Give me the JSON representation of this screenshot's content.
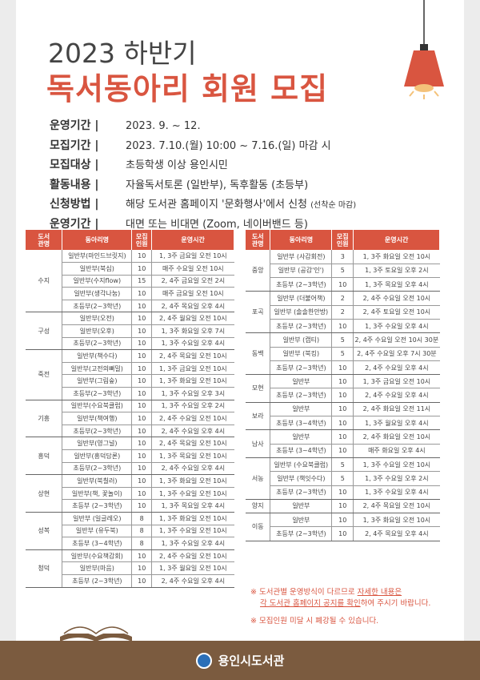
{
  "title": {
    "line1": "2023 하반기",
    "line2": "독서동아리 회원 모집"
  },
  "info": [
    {
      "k": "운영기간 |",
      "v": "2023. 9. ~ 12.",
      "s": ""
    },
    {
      "k": "모집기간 |",
      "v": "2023. 7.10.(월) 10:00 ~ 7.16.(일) 마감 시",
      "s": ""
    },
    {
      "k": "모집대상 |",
      "v": "초등학생 이상 용인시민",
      "s": ""
    },
    {
      "k": "활동내용 |",
      "v": "자율독서토론 (일반부), 독후활동 (초등부)",
      "s": ""
    },
    {
      "k": "신청방법 |",
      "v": "해당 도서관 홈페이지 '문화행사'에서 신청 ",
      "s": "(선착순 마감)"
    },
    {
      "k": "운영기간 |",
      "v": "대면 또는 비대면 (Zoom, 네이버밴드 등)",
      "s": ""
    }
  ],
  "headers": [
    "도서\n관명",
    "동아리명",
    "모집\n인원",
    "운영시간"
  ],
  "left": [
    {
      "lib": "수지",
      "rows": [
        [
          "일반부(마인드브릿지)",
          "10",
          "1, 3주 금요일 오전 10시"
        ],
        [
          "일반부(북심)",
          "10",
          "매주 수요일 오전 10시"
        ],
        [
          "일반부(수지flow)",
          "15",
          "2, 4주 금요일 오전 2시"
        ],
        [
          "일반부(생각나눔)",
          "10",
          "매주 금요일 오전 10시"
        ],
        [
          "초등부(2~3학년)",
          "10",
          "2, 4주 목요일 오후 4시"
        ]
      ]
    },
    {
      "lib": "구성",
      "rows": [
        [
          "일반부(오전)",
          "10",
          "2, 4주 월요일 오전 10시"
        ],
        [
          "일반부(오후)",
          "10",
          "1, 3주 화요일 오후 7시"
        ],
        [
          "초등부(2~3학년)",
          "10",
          "1, 3주 수요일 오후 4시"
        ]
      ]
    },
    {
      "lib": "죽전",
      "rows": [
        [
          "일반부(책수다)",
          "10",
          "2, 4주 목요일 오전 10시"
        ],
        [
          "일반부(고전의뼈밀)",
          "10",
          "1, 3주 금요일 오전 10시"
        ],
        [
          "일반부(그림숲)",
          "10",
          "1, 3주 화요일 오전 10시"
        ],
        [
          "초등부(2~3학년)",
          "10",
          "1, 3주 수요일 오후 3시"
        ]
      ]
    },
    {
      "lib": "기흥",
      "rows": [
        [
          "일반부(수요북클럽)",
          "10",
          "1, 3주 수요일 오후 2시"
        ],
        [
          "일반부(책여행)",
          "10",
          "2, 4주 수요일 오전 10시"
        ],
        [
          "초등부(2~3학년)",
          "10",
          "2, 4주 수요일 오후 4시"
        ]
      ]
    },
    {
      "lib": "흥덕",
      "rows": [
        [
          "일반부(영그널)",
          "10",
          "2, 4주 목요일 오전 10시"
        ],
        [
          "일반부(흥덕담론)",
          "10",
          "1, 3주 목요일 오전 10시"
        ],
        [
          "초등부(2~3학년)",
          "10",
          "2, 4주 수요일 오후 4시"
        ]
      ]
    },
    {
      "lib": "상현",
      "rows": [
        [
          "일반부(북칠러)",
          "10",
          "1, 3주 화요일 오전 10시"
        ],
        [
          "일반부(책, 꽃놀이)",
          "10",
          "1, 3주 수요일 오전 10시"
        ],
        [
          "초등부 (2~3학년)",
          "10",
          "1, 3주 목요일 오후 4시"
        ]
      ]
    },
    {
      "lib": "성복",
      "rows": [
        [
          "일반부 (일글레오)",
          "8",
          "1, 3주 화요일 오전 10시"
        ],
        [
          "일반부 (유두북)",
          "8",
          "1, 3주 수요일 오전 10시"
        ],
        [
          "초등부 (3~4학년)",
          "8",
          "1, 3주 수요일 오후 4시"
        ]
      ]
    },
    {
      "lib": "청덕",
      "rows": [
        [
          "일반부(수요책감회)",
          "10",
          "2, 4주 수요일 오전 10시"
        ],
        [
          "일반부(마음)",
          "10",
          "1, 3주 월요일 오전 10시"
        ],
        [
          "초등부 (2~3학년)",
          "10",
          "2, 4주 수요일 오후 4시"
        ]
      ]
    }
  ],
  "right": [
    {
      "lib": "중앙",
      "rows": [
        [
          "일반부 (사감회전)",
          "3",
          "1, 3주 화요일 오전 10시"
        ],
        [
          "일반부 (공감'인')",
          "5",
          "1, 3주 토요일 오후 2시"
        ],
        [
          "초등부 (2~3학년)",
          "10",
          "1, 3주 목요일 오후 4시"
        ]
      ]
    },
    {
      "lib": "포곡",
      "rows": [
        [
          "일반부 (더불어책)",
          "2",
          "2, 4주 수요일 오전 10시"
        ],
        [
          "일반부 (솔솔한안방)",
          "2",
          "2, 4주 토요일 오전 10시"
        ],
        [
          "초등부 (2~3학년)",
          "10",
          "1, 3주 수요일 오후 4시"
        ]
      ]
    },
    {
      "lib": "동백",
      "rows": [
        [
          "일반부 (캡티)",
          "5",
          "2, 4주 수요일 오전 10시 30분"
        ],
        [
          "일반부 (북킹)",
          "5",
          "2, 4주 수요일 오후 7시 30분"
        ],
        [
          "초등부 (2~3학년)",
          "10",
          "2, 4주 수요일 오후 4시"
        ]
      ]
    },
    {
      "lib": "모현",
      "rows": [
        [
          "일반부",
          "10",
          "1, 3주 금요일 오전 10시"
        ],
        [
          "초등부 (2~3학년)",
          "10",
          "2, 4주 수요일 오후 4시"
        ]
      ]
    },
    {
      "lib": "보라",
      "rows": [
        [
          "일반부",
          "10",
          "2, 4주 화요일 오전 11시"
        ],
        [
          "초등부 (3~4학년)",
          "10",
          "1, 3주 월요일 오후 4시"
        ]
      ]
    },
    {
      "lib": "남사",
      "rows": [
        [
          "일반부",
          "10",
          "2, 4주 화요일 오전 10시"
        ],
        [
          "초등부 (3~4학년)",
          "10",
          "매주 화요일 오후 4시"
        ]
      ]
    },
    {
      "lib": "서농",
      "rows": [
        [
          "일반부 (수요북클럽)",
          "5",
          "1, 3주 수요일 오전 10시"
        ],
        [
          "일반부 (책잇수다)",
          "5",
          "1, 3주 수요일 오후 2시"
        ],
        [
          "초등부 (2~3학년)",
          "10",
          "1, 3주 수요일 오후 4시"
        ]
      ]
    },
    {
      "lib": "양지",
      "rows": [
        [
          "일반부",
          "10",
          "2, 4주 목요일 오전 10시"
        ]
      ]
    },
    {
      "lib": "이동",
      "rows": [
        [
          "일반부",
          "10",
          "1, 3주 화요일 오전 10시"
        ],
        [
          "초등부 (2~3학년)",
          "10",
          "2, 4주 목요일 오후 4시"
        ]
      ]
    }
  ],
  "notes": {
    "n1a": "※ 도서관별 운영방식이 다르므로 ",
    "n1b": "자세한 내용은",
    "n1c": "각 도서관 홈페이지 공지를 확인",
    "n1d": "하여 주시기 바랍니다.",
    "n2": "※ 모집인원 미달 시 폐강될 수 있습니다."
  },
  "footer": {
    "name": "용인시도서관"
  },
  "colors": {
    "accent": "#d95540",
    "footer": "#7b5b3f"
  }
}
